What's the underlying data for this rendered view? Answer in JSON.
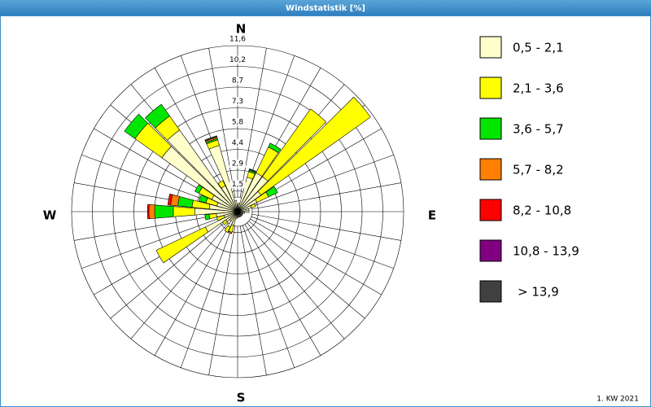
{
  "chart_data": {
    "type": "wind_rose",
    "title": "Windstatistik [%]",
    "direction_labels": [
      "N",
      "E",
      "S",
      "W"
    ],
    "note": "1. KW 2021",
    "x": [
      0,
      10,
      20,
      30,
      40,
      50,
      60,
      70,
      80,
      90,
      100,
      110,
      120,
      130,
      140,
      150,
      160,
      170,
      180,
      190,
      200,
      210,
      220,
      230,
      240,
      250,
      260,
      270,
      280,
      290,
      300,
      310,
      320,
      330,
      340,
      350
    ],
    "ylim": [
      0,
      11.6
    ],
    "yticks": [
      {
        "value": 1.45,
        "label": "1,5"
      },
      {
        "value": 2.9,
        "label": "2,9"
      },
      {
        "value": 4.35,
        "label": "4,4"
      },
      {
        "value": 5.8,
        "label": "5,8"
      },
      {
        "value": 7.25,
        "label": "7,3"
      },
      {
        "value": 8.7,
        "label": "8,7"
      },
      {
        "value": 10.15,
        "label": "10,2"
      },
      {
        "value": 11.6,
        "label": "11,6"
      }
    ],
    "series": [
      {
        "name": "0,5 - 2,1",
        "color": "#ffffcc",
        "values": [
          0.5,
          0.6,
          2.5,
          3.0,
          3.0,
          2.0,
          1.5,
          1.0,
          0.8,
          0.8,
          0.5,
          0.4,
          0.4,
          0.4,
          0.4,
          0.4,
          0.4,
          0.4,
          0.4,
          0.5,
          1.0,
          1.2,
          0.8,
          1.0,
          2.5,
          1.0,
          1.5,
          3.0,
          2.0,
          1.5,
          2.0,
          6.5,
          7.0,
          2.0,
          4.8,
          0.8
        ]
      },
      {
        "name": "2,1 - 3,6",
        "color": "#ffff00",
        "values": [
          0,
          0,
          0.4,
          2.0,
          5.8,
          9.4,
          0.9,
          0.3,
          0,
          0,
          0,
          0,
          0,
          0,
          0,
          0,
          0,
          0,
          0,
          0,
          0.5,
          0.4,
          0,
          0.3,
          3.8,
          0.5,
          0.5,
          1.5,
          1.2,
          0.8,
          1.0,
          2.3,
          1.2,
          0.4,
          0.4,
          0
        ]
      },
      {
        "name": "3,6 - 5,7",
        "color": "#00e600",
        "values": [
          0,
          0,
          0.1,
          0.3,
          0,
          0,
          0.7,
          0,
          0,
          0,
          0,
          0,
          0,
          0,
          0,
          0,
          0,
          0,
          0,
          0,
          0,
          0,
          0,
          0,
          0,
          0,
          0.3,
          1.3,
          1.0,
          0.5,
          0.3,
          0.9,
          1.0,
          0,
          0.1,
          0
        ]
      },
      {
        "name": "5,7 - 8,2",
        "color": "#ff8000",
        "values": [
          0,
          0,
          0,
          0,
          0,
          0,
          0,
          0,
          0,
          0,
          0,
          0,
          0,
          0,
          0,
          0,
          0,
          0,
          0,
          0,
          0.1,
          0,
          0,
          0,
          0,
          0,
          0,
          0.4,
          0.5,
          0,
          0,
          0,
          0,
          0,
          0.1,
          0
        ]
      },
      {
        "name": "8,2 - 10,8",
        "color": "#ff0000",
        "values": [
          0,
          0,
          0,
          0,
          0,
          0,
          0,
          0,
          0,
          0,
          0,
          0,
          0,
          0,
          0,
          0,
          0,
          0,
          0,
          0,
          0,
          0,
          0,
          0,
          0,
          0,
          0,
          0.1,
          0.2,
          0,
          0,
          0,
          0,
          0,
          0,
          0
        ]
      },
      {
        "name": "10,8 - 13,9",
        "color": "#800080",
        "values": [
          0,
          0,
          0,
          0,
          0,
          0,
          0,
          0,
          0,
          0,
          0,
          0,
          0,
          0,
          0,
          0,
          0,
          0,
          0,
          0,
          0,
          0,
          0,
          0,
          0,
          0,
          0,
          0,
          0,
          0,
          0,
          0,
          0,
          0,
          0,
          0
        ]
      },
      {
        "name": "> 13,9",
        "color": "#404040",
        "values": [
          0,
          0,
          0.1,
          0,
          0,
          0,
          0,
          0,
          0,
          0,
          0,
          0,
          0,
          0,
          0,
          0,
          0,
          0,
          0,
          0,
          0,
          0,
          0,
          0,
          0,
          0,
          0,
          0,
          0,
          0,
          0,
          0,
          0,
          0,
          0.1,
          0
        ]
      }
    ]
  }
}
